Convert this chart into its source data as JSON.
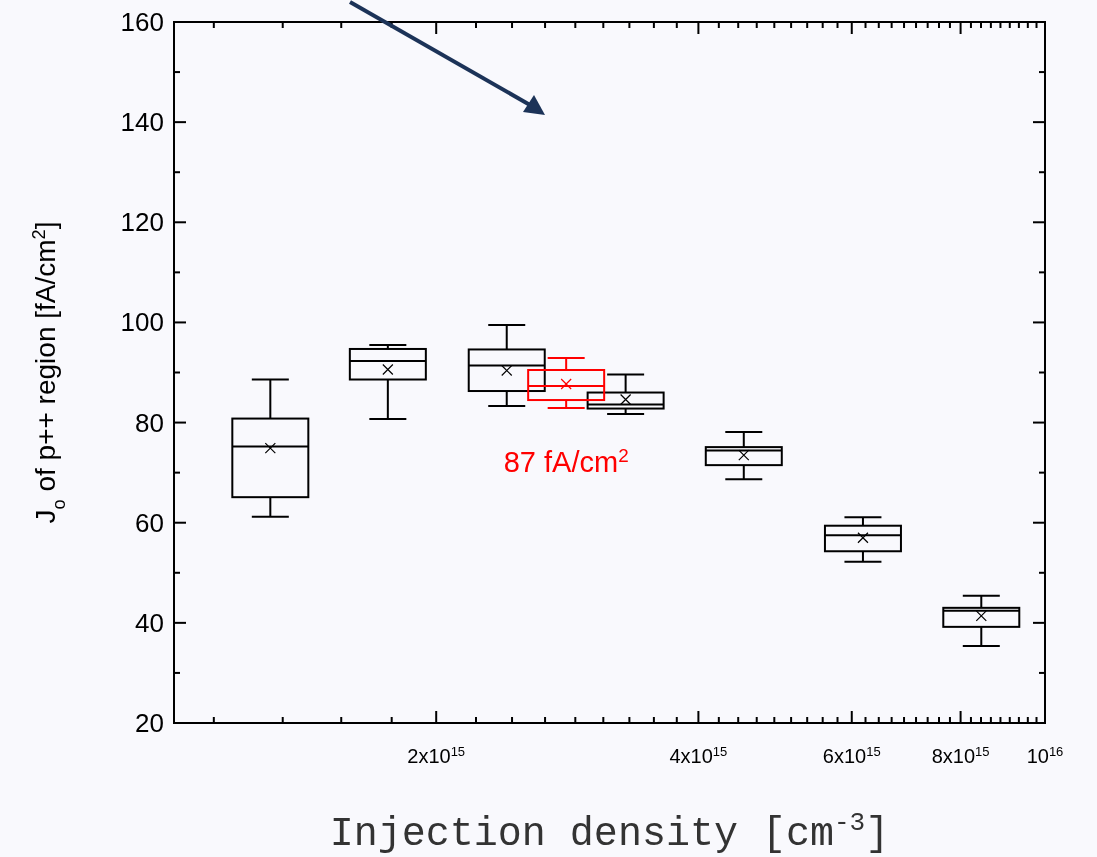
{
  "chart_data": {
    "type": "box",
    "xlabel": "Injection density  [cm$^{-3}$]",
    "ylabel": "J$_{o}$ of p++ region [fA/cm$^{2}$]",
    "log": "x",
    "xlim": [
      1000000000000000.0,
      1e+16
    ],
    "xticks": [
      {
        "value": 2000000000000000.0,
        "label": "2x10$^{15}$"
      },
      {
        "value": 4000000000000000.0,
        "label": "4x10$^{15}$"
      },
      {
        "value": 6000000000000000.0,
        "label": "6x10$^{15}$"
      },
      {
        "value": 8000000000000000.0,
        "label": "8x10$^{15}$"
      },
      {
        "value": 1e+16,
        "label": "10$^{16}$"
      },
      {
        "value": 1111000000000000.0,
        "label": null
      },
      {
        "value": 1333000000000000.0,
        "label": null
      },
      {
        "value": 1556000000000000.0,
        "label": null
      },
      {
        "value": 1778000000000000.0,
        "label": null
      },
      {
        "value": 2222000000000000.0,
        "label": null
      },
      {
        "value": 2444000000000000.0,
        "label": null
      },
      {
        "value": 2667000000000000.0,
        "label": null
      },
      {
        "value": 2889000000000000.0,
        "label": null
      },
      {
        "value": 3111000000000000.0,
        "label": null
      },
      {
        "value": 3333000000000000.0,
        "label": null
      },
      {
        "value": 3556000000000000.0,
        "label": null
      },
      {
        "value": 3778000000000000.0,
        "label": null
      },
      {
        "value": 4222000000000000.0,
        "label": null
      },
      {
        "value": 4444000000000000.0,
        "label": null
      },
      {
        "value": 4667000000000000.0,
        "label": null
      },
      {
        "value": 4889000000000000.0,
        "label": null
      },
      {
        "value": 5111000000000000.0,
        "label": null
      },
      {
        "value": 5333000000000000.0,
        "label": null
      },
      {
        "value": 5556000000000000.0,
        "label": null
      },
      {
        "value": 5778000000000000.0,
        "label": null
      },
      {
        "value": 6222000000000000.0,
        "label": null
      },
      {
        "value": 6444000000000000.0,
        "label": null
      },
      {
        "value": 6667000000000000.0,
        "label": null
      },
      {
        "value": 6889000000000000.0,
        "label": null
      },
      {
        "value": 7111000000000000.0,
        "label": null
      },
      {
        "value": 7333000000000000.0,
        "label": null
      },
      {
        "value": 7556000000000000.0,
        "label": null
      },
      {
        "value": 7778000000000000.0,
        "label": null
      },
      {
        "value": 8222000000000000.0,
        "label": null
      },
      {
        "value": 8444000000000000.0,
        "label": null
      },
      {
        "value": 8667000000000000.0,
        "label": null
      },
      {
        "value": 8889000000000000.0,
        "label": null
      },
      {
        "value": 9111000000000000.0,
        "label": null
      },
      {
        "value": 9333000000000000.0,
        "label": null
      },
      {
        "value": 9556000000000000.0,
        "label": null
      },
      {
        "value": 9778000000000000.0,
        "label": null
      }
    ],
    "ylim": [
      20,
      160
    ],
    "yticks": [
      20,
      40,
      60,
      80,
      100,
      120,
      140,
      160,
      {
        "value": 30,
        "label": null
      },
      {
        "value": 50,
        "label": null
      },
      {
        "value": 70,
        "label": null
      },
      {
        "value": 90,
        "label": null
      },
      {
        "value": 110,
        "label": null
      },
      {
        "value": 130,
        "label": null
      },
      {
        "value": 150,
        "label": null
      }
    ],
    "grid": false,
    "marker": "cross",
    "series": [
      {
        "color": "#000000",
        "x": [
          1290000000000000.0,
          1760000000000000.0,
          2410000000000000.0,
          3300000000000000.0,
          4510000000000000.0,
          6180000000000000.0,
          8450000000000000.0
        ],
        "boxes": [
          {
            "low": 61.2,
            "q1": 65.1,
            "median": 75.2,
            "q3": 80.8,
            "high": 88.6,
            "mean": 74.9
          },
          {
            "low": 80.7,
            "q1": 88.6,
            "median": 92.3,
            "q3": 94.7,
            "high": 95.5,
            "mean": 90.6
          },
          {
            "low": 83.3,
            "q1": 86.3,
            "median": 91.4,
            "q3": 94.6,
            "high": 99.5,
            "mean": 90.4
          },
          {
            "low": 81.7,
            "q1": 82.8,
            "median": 83.6,
            "q3": 86.0,
            "high": 89.6,
            "mean": 84.6
          },
          {
            "low": 68.7,
            "q1": 71.5,
            "median": 74.4,
            "q3": 75.1,
            "high": 78.1,
            "mean": 73.5
          },
          {
            "low": 52.2,
            "q1": 54.3,
            "median": 57.5,
            "q3": 59.4,
            "high": 61.1,
            "mean": 57.0
          },
          {
            "low": 35.4,
            "q1": 39.2,
            "median": 42.4,
            "q3": 43.0,
            "high": 45.4,
            "mean": 41.4
          }
        ]
      },
      {
        "color": "#ff0000",
        "x": [
          2820000000000000.0
        ],
        "boxes": [
          {
            "low": 82.9,
            "q1": 84.5,
            "median": 87.3,
            "q3": 90.5,
            "high": 92.9,
            "mean": 87.7
          }
        ]
      }
    ],
    "annotations": [
      "87 fA/cm$^{2}$"
    ]
  }
}
